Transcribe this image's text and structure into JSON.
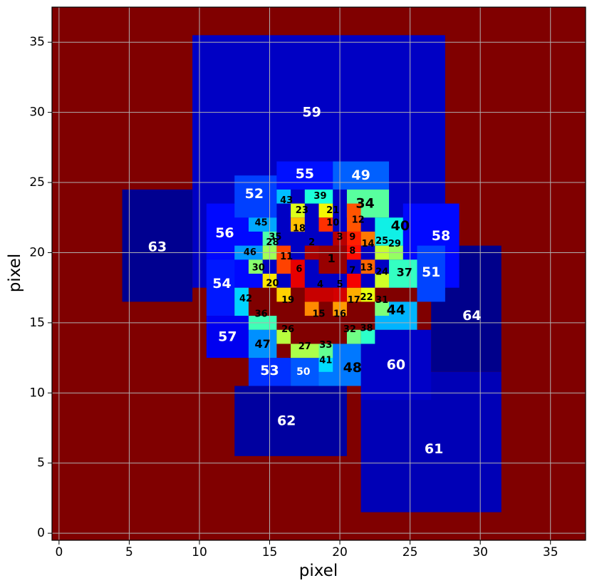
{
  "chart_data": {
    "type": "heatmap",
    "title": "",
    "xlabel": "pixel",
    "ylabel": "pixel",
    "xlim": [
      -0.5,
      37.5
    ],
    "ylim": [
      -0.5,
      37.5
    ],
    "xticks": [
      0,
      5,
      10,
      15,
      20,
      25,
      30,
      35
    ],
    "yticks": [
      0,
      5,
      10,
      15,
      20,
      25,
      30,
      35
    ],
    "grid": true,
    "background_color": "#800000",
    "colormap": "jet",
    "bins": [
      {
        "id": "64",
        "x0": 26.5,
        "x1": 31.5,
        "y0": 11.5,
        "y1": 20.5,
        "color": "#00008b",
        "label_x": 29.4,
        "label_y": 15.5
      },
      {
        "id": "63",
        "x0": 4.5,
        "x1": 9.5,
        "y0": 16.5,
        "y1": 24.5,
        "color": "#000090",
        "label_x": 7.0,
        "label_y": 20.4
      },
      {
        "id": "62",
        "x0": 12.5,
        "x1": 20.5,
        "y0": 5.5,
        "y1": 10.5,
        "color": "#0000a0",
        "label_x": 16.2,
        "label_y": 8.0
      },
      {
        "id": "61",
        "x0": 21.5,
        "x1": 31.5,
        "y0": 1.5,
        "y1": 11.5,
        "color": "#0000b6",
        "label_x": 26.7,
        "label_y": 6.0
      },
      {
        "id": "59",
        "x0": 9.5,
        "x1": 27.5,
        "y0": 17.5,
        "y1": 35.5,
        "color": "#0000c4",
        "label_x": 18.0,
        "label_y": 30.0
      },
      {
        "id": "60",
        "x0": 21.5,
        "x1": 26.5,
        "y0": 9.5,
        "y1": 14.5,
        "color": "#0000c8",
        "label_x": 24.0,
        "label_y": 12.0
      },
      {
        "id": "57",
        "x0": 10.5,
        "x1": 14.5,
        "y0": 12.5,
        "y1": 15.5,
        "color": "#0000f0",
        "label_x": 12.0,
        "label_y": 14.0
      },
      {
        "id": "56",
        "x0": 10.5,
        "x1": 14.5,
        "y0": 17.5,
        "y1": 23.5,
        "color": "#0008ff",
        "label_x": 11.8,
        "label_y": 21.4
      },
      {
        "id": "58",
        "x0": 24.5,
        "x1": 28.5,
        "y0": 17.5,
        "y1": 23.5,
        "color": "#0008ff",
        "label_x": 27.2,
        "label_y": 21.2
      },
      {
        "id": "55",
        "x0": 15.5,
        "x1": 19.5,
        "y0": 24.5,
        "y1": 26.5,
        "color": "#0010ff",
        "label_x": 17.5,
        "label_y": 25.6
      },
      {
        "id": "54",
        "x0": 10.5,
        "x1": 12.5,
        "y0": 15.5,
        "y1": 19.5,
        "color": "#0018ff",
        "label_x": 11.6,
        "label_y": 17.8
      },
      {
        "id": "53",
        "x0": 13.5,
        "x1": 16.5,
        "y0": 10.5,
        "y1": 12.5,
        "color": "#0030ff",
        "label_x": 15.0,
        "label_y": 11.6
      },
      {
        "id": "52",
        "x0": 12.5,
        "x1": 15.5,
        "y0": 22.5,
        "y1": 25.5,
        "color": "#0040ff",
        "label_x": 13.9,
        "label_y": 24.2
      },
      {
        "id": "51",
        "x0": 25.5,
        "x1": 27.5,
        "y0": 16.5,
        "y1": 20.5,
        "color": "#0044ff",
        "label_x": 26.5,
        "label_y": 18.6
      },
      {
        "id": "50",
        "x0": 16.5,
        "x1": 18.5,
        "y0": 10.5,
        "y1": 12.5,
        "color": "#0058ff",
        "label_x": 17.4,
        "label_y": 11.5
      },
      {
        "id": "49",
        "x0": 19.5,
        "x1": 23.5,
        "y0": 24.5,
        "y1": 26.5,
        "color": "#0060ff",
        "label_x": 21.5,
        "label_y": 25.5
      },
      {
        "id": "48",
        "x0": 18.5,
        "x1": 21.5,
        "y0": 10.5,
        "y1": 13.5,
        "color": "#0078ff",
        "label_x": 20.9,
        "label_y": 11.8
      },
      {
        "id": "47",
        "x0": 13.5,
        "x1": 15.5,
        "y0": 12.5,
        "y1": 14.5,
        "color": "#0090ff",
        "label_x": 14.5,
        "label_y": 13.5
      },
      {
        "id": "46",
        "x0": 12.5,
        "x1": 14.5,
        "y0": 19.5,
        "y1": 20.5,
        "color": "#0098ff",
        "label_x": 13.6,
        "label_y": 20.0
      },
      {
        "id": "45",
        "x0": 13.5,
        "x1": 15.5,
        "y0": 21.5,
        "y1": 22.5,
        "color": "#00a8ff",
        "label_x": 14.4,
        "label_y": 22.1
      },
      {
        "id": "44",
        "x0": 22.5,
        "x1": 25.5,
        "y0": 14.5,
        "y1": 16.5,
        "color": "#00b4ff",
        "label_x": 24.0,
        "label_y": 15.9
      },
      {
        "id": "43",
        "x0": 15.5,
        "x1": 16.5,
        "y0": 23.5,
        "y1": 24.5,
        "color": "#00c0ff",
        "label_x": 16.2,
        "label_y": 23.7
      },
      {
        "id": "42",
        "x0": 12.5,
        "x1": 13.5,
        "y0": 15.5,
        "y1": 17.5,
        "color": "#00d4ff",
        "label_x": 13.3,
        "label_y": 16.7
      },
      {
        "id": "41",
        "x0": 18.5,
        "x1": 19.5,
        "y0": 11.5,
        "y1": 12.5,
        "color": "#00dcfe",
        "label_x": 19.0,
        "label_y": 12.3
      },
      {
        "id": "40",
        "x0": 22.5,
        "x1": 24.5,
        "y0": 20.5,
        "y1": 22.5,
        "color": "#10f0e6",
        "label_x": 24.3,
        "label_y": 21.9
      },
      {
        "id": "39",
        "x0": 17.5,
        "x1": 19.5,
        "y0": 23.5,
        "y1": 24.5,
        "color": "#1cffda",
        "label_x": 18.6,
        "label_y": 24.0
      },
      {
        "id": "38",
        "x0": 21.5,
        "x1": 22.5,
        "y0": 13.5,
        "y1": 14.5,
        "color": "#2cffca",
        "label_x": 21.9,
        "label_y": 14.6
      },
      {
        "id": "37",
        "x0": 23.5,
        "x1": 25.5,
        "y0": 17.5,
        "y1": 19.5,
        "color": "#34ffc2",
        "label_x": 24.6,
        "label_y": 18.6
      },
      {
        "id": "36",
        "x0": 13.5,
        "x1": 15.5,
        "y0": 14.5,
        "y1": 15.5,
        "color": "#40ffb6",
        "label_x": 14.4,
        "label_y": 15.6
      },
      {
        "id": "35",
        "x0": 14.5,
        "x1": 15.5,
        "y0": 20.5,
        "y1": 21.5,
        "color": "#4cffaa",
        "label_x": 15.4,
        "label_y": 21.1
      },
      {
        "id": "34",
        "x0": 20.5,
        "x1": 23.5,
        "y0": 22.5,
        "y1": 24.5,
        "color": "#58ff9e",
        "label_x": 21.8,
        "label_y": 23.5
      },
      {
        "id": "33",
        "x0": 18.5,
        "x1": 19.5,
        "y0": 12.5,
        "y1": 13.5,
        "color": "#64ff92",
        "label_x": 19.0,
        "label_y": 13.4
      },
      {
        "id": "32",
        "x0": 20.5,
        "x1": 21.5,
        "y0": 13.5,
        "y1": 14.5,
        "color": "#70ff86",
        "label_x": 20.7,
        "label_y": 14.5
      },
      {
        "id": "31",
        "x0": 22.5,
        "x1": 23.5,
        "y0": 15.5,
        "y1": 16.5,
        "color": "#7cff7a",
        "label_x": 23.0,
        "label_y": 16.6
      },
      {
        "id": "30",
        "x0": 13.5,
        "x1": 14.5,
        "y0": 18.5,
        "y1": 19.5,
        "color": "#88ff6e",
        "label_x": 14.2,
        "label_y": 18.9
      },
      {
        "id": "29",
        "x0": 23.5,
        "x1": 24.5,
        "y0": 19.5,
        "y1": 20.5,
        "color": "#94ff62",
        "label_x": 23.9,
        "label_y": 20.6
      },
      {
        "id": "28",
        "x0": 14.5,
        "x1": 15.5,
        "y0": 19.5,
        "y1": 20.5,
        "color": "#a0ff56",
        "label_x": 15.2,
        "label_y": 20.7
      },
      {
        "id": "27",
        "x0": 16.5,
        "x1": 18.5,
        "y0": 12.5,
        "y1": 13.5,
        "color": "#acff4a",
        "label_x": 17.5,
        "label_y": 13.3
      },
      {
        "id": "26",
        "x0": 15.5,
        "x1": 16.5,
        "y0": 13.5,
        "y1": 14.5,
        "color": "#b8ff3e",
        "label_x": 16.3,
        "label_y": 14.5
      },
      {
        "id": "25",
        "x0": 22.5,
        "x1": 23.5,
        "y0": 19.5,
        "y1": 20.5,
        "color": "#c4ff32",
        "label_x": 23.0,
        "label_y": 20.8
      },
      {
        "id": "24",
        "x0": 22.5,
        "x1": 23.5,
        "y0": 17.5,
        "y1": 18.5,
        "color": "#d0ff26",
        "label_x": 23.0,
        "label_y": 18.6
      },
      {
        "id": "23",
        "x0": 16.5,
        "x1": 17.5,
        "y0": 22.5,
        "y1": 23.5,
        "color": "#dcff1a",
        "label_x": 17.3,
        "label_y": 23.0
      },
      {
        "id": "22",
        "x0": 21.5,
        "x1": 22.5,
        "y0": 16.5,
        "y1": 17.5,
        "color": "#e8ff0e",
        "label_x": 21.9,
        "label_y": 16.8
      },
      {
        "id": "21",
        "x0": 18.5,
        "x1": 19.5,
        "y0": 22.5,
        "y1": 23.5,
        "color": "#f4f802",
        "label_x": 19.5,
        "label_y": 23.0
      },
      {
        "id": "20",
        "x0": 14.5,
        "x1": 15.5,
        "y0": 17.5,
        "y1": 18.5,
        "color": "#ffe600",
        "label_x": 15.2,
        "label_y": 17.8
      },
      {
        "id": "19",
        "x0": 15.5,
        "x1": 16.5,
        "y0": 16.5,
        "y1": 17.5,
        "color": "#ffd200",
        "label_x": 16.3,
        "label_y": 16.6
      },
      {
        "id": "18",
        "x0": 16.5,
        "x1": 17.5,
        "y0": 21.5,
        "y1": 22.5,
        "color": "#ffc000",
        "label_x": 17.1,
        "label_y": 21.7
      },
      {
        "id": "17",
        "x0": 20.5,
        "x1": 21.5,
        "y0": 16.5,
        "y1": 17.5,
        "color": "#ffae00",
        "label_x": 21.0,
        "label_y": 16.6
      },
      {
        "id": "16",
        "x0": 19.5,
        "x1": 20.5,
        "y0": 15.5,
        "y1": 16.5,
        "color": "#ff9c00",
        "label_x": 20.0,
        "label_y": 15.6
      },
      {
        "id": "15",
        "x0": 17.5,
        "x1": 18.5,
        "y0": 15.5,
        "y1": 16.5,
        "color": "#ff8a00",
        "label_x": 18.5,
        "label_y": 15.6
      },
      {
        "id": "14",
        "x0": 21.5,
        "x1": 22.5,
        "y0": 20.5,
        "y1": 21.5,
        "color": "#ff7800",
        "label_x": 22.0,
        "label_y": 20.6
      },
      {
        "id": "13",
        "x0": 21.5,
        "x1": 22.5,
        "y0": 18.5,
        "y1": 19.5,
        "color": "#ff6600",
        "label_x": 21.9,
        "label_y": 18.9
      },
      {
        "id": "12",
        "x0": 20.5,
        "x1": 21.5,
        "y0": 21.5,
        "y1": 23.5,
        "color": "#ff5400",
        "label_x": 21.3,
        "label_y": 22.3
      },
      {
        "id": "11",
        "x0": 15.5,
        "x1": 16.5,
        "y0": 18.5,
        "y1": 20.5,
        "color": "#ff4200",
        "label_x": 16.2,
        "label_y": 19.7
      },
      {
        "id": "10",
        "x0": 18.5,
        "x1": 19.5,
        "y0": 21.5,
        "y1": 22.5,
        "color": "#ff3000",
        "label_x": 19.5,
        "label_y": 22.1
      },
      {
        "id": "9",
        "x0": 20.5,
        "x1": 21.5,
        "y0": 20.5,
        "y1": 21.5,
        "color": "#ff1e00",
        "label_x": 20.9,
        "label_y": 21.1
      },
      {
        "id": "8",
        "x0": 20.5,
        "x1": 21.5,
        "y0": 19.5,
        "y1": 20.5,
        "color": "#ff0c00",
        "label_x": 20.9,
        "label_y": 20.1
      },
      {
        "id": "7",
        "x0": 20.5,
        "x1": 21.5,
        "y0": 17.5,
        "y1": 18.5,
        "color": "#f60000",
        "label_x": 20.9,
        "label_y": 18.7
      },
      {
        "id": "6",
        "x0": 16.5,
        "x1": 17.5,
        "y0": 17.5,
        "y1": 19.5,
        "color": "#e80000",
        "label_x": 17.1,
        "label_y": 18.8
      },
      {
        "id": "5",
        "x0": 19.5,
        "x1": 20.5,
        "y0": 16.5,
        "y1": 17.5,
        "color": "#d40000",
        "label_x": 20.0,
        "label_y": 17.7
      },
      {
        "id": "4",
        "x0": 17.5,
        "x1": 19.5,
        "y0": 16.5,
        "y1": 17.5,
        "color": "#c80000",
        "label_x": 18.6,
        "label_y": 17.7
      },
      {
        "id": "3",
        "x0": 19.5,
        "x1": 20.5,
        "y0": 20.5,
        "y1": 21.5,
        "color": "#b80000",
        "label_x": 20.0,
        "label_y": 21.1
      },
      {
        "id": "2",
        "x0": 17.5,
        "x1": 18.5,
        "y0": 19.5,
        "y1": 20.5,
        "color": "#a80000",
        "label_x": 18.0,
        "label_y": 20.7
      },
      {
        "id": "1",
        "x0": 18.5,
        "x1": 20.5,
        "y0": 18.5,
        "y1": 20.5,
        "color": "#980000",
        "label_x": 19.4,
        "label_y": 19.6
      }
    ]
  }
}
